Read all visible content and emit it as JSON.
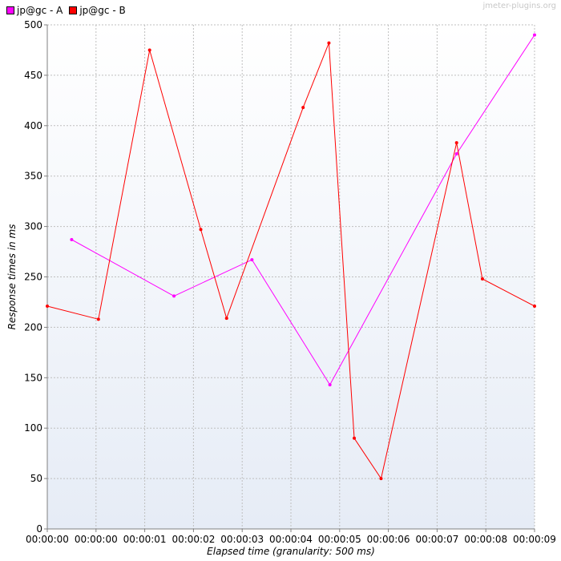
{
  "watermark": "jmeter-plugins.org",
  "chart_data": {
    "type": "line",
    "xlabel": "Elapsed time (granularity: 500 ms)",
    "ylabel": "Response times in ms",
    "ylim": [
      0,
      500
    ],
    "yticks": [
      0,
      50,
      100,
      150,
      200,
      250,
      300,
      350,
      400,
      450,
      500
    ],
    "xlim_seconds": [
      0,
      9
    ],
    "xticks": [
      {
        "t": 0,
        "label": "00:00:00"
      },
      {
        "t": 1,
        "label": "00:00:00"
      },
      {
        "t": 2,
        "label": "00:00:01"
      },
      {
        "t": 3,
        "label": "00:00:02"
      },
      {
        "t": 4,
        "label": "00:00:03"
      },
      {
        "t": 5,
        "label": "00:00:04"
      },
      {
        "t": 6,
        "label": "00:00:05"
      },
      {
        "t": 7,
        "label": "00:00:06"
      },
      {
        "t": 8,
        "label": "00:00:07"
      },
      {
        "t": 9,
        "label": "00:00:08"
      },
      {
        "t": 10,
        "label": "00:00:09"
      }
    ],
    "grid": true,
    "legend_position": "top-left",
    "series": [
      {
        "name": "jp@gc - A",
        "color": "#ff00ff",
        "points": [
          [
            0.5,
            287
          ],
          [
            2.6,
            231
          ],
          [
            4.2,
            267
          ],
          [
            5.8,
            143
          ],
          [
            8.4,
            372
          ],
          [
            10.0,
            490
          ]
        ]
      },
      {
        "name": "jp@gc - B",
        "color": "#ff0000",
        "points": [
          [
            0.0,
            221
          ],
          [
            1.05,
            208
          ],
          [
            2.1,
            475
          ],
          [
            3.15,
            297
          ],
          [
            3.68,
            209
          ],
          [
            5.25,
            418
          ],
          [
            5.78,
            482
          ],
          [
            6.3,
            90
          ],
          [
            6.85,
            50
          ],
          [
            8.4,
            383
          ],
          [
            8.93,
            248
          ],
          [
            10.0,
            221
          ]
        ]
      }
    ]
  }
}
